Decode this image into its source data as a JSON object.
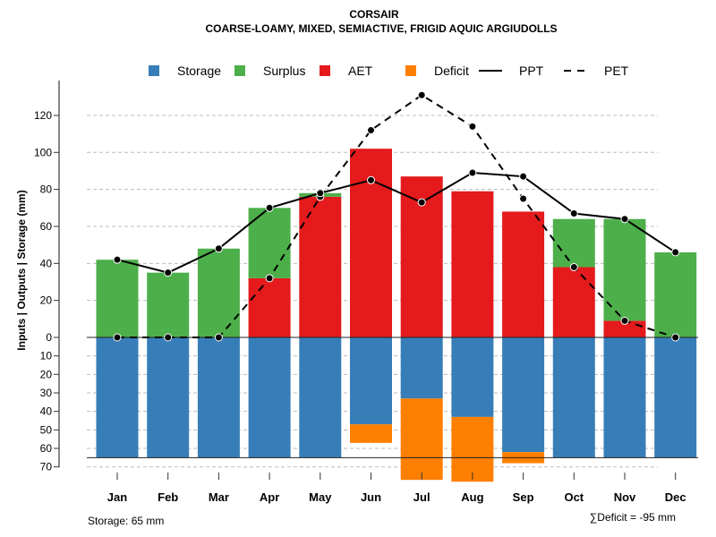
{
  "chart_data": {
    "type": "bar",
    "title": "CORSAIR",
    "subtitle": "COARSE-LOAMY, MIXED, SEMIACTIVE, FRIGID AQUIC ARGIUDOLLS",
    "ylabel": "Inputs | Outputs | Storage    (mm)",
    "categories": [
      "Jan",
      "Feb",
      "Mar",
      "Apr",
      "May",
      "Jun",
      "Jul",
      "Aug",
      "Sep",
      "Oct",
      "Nov",
      "Dec"
    ],
    "upper_ticks": [
      0,
      20,
      40,
      60,
      80,
      100,
      120
    ],
    "lower_ticks": [
      10,
      20,
      30,
      40,
      50,
      60,
      70
    ],
    "ylim": [
      -70,
      135
    ],
    "grid": true,
    "legend_placement": "top",
    "legend": [
      {
        "label": "Storage",
        "type": "box",
        "color": "#377EB8"
      },
      {
        "label": "Surplus",
        "type": "box",
        "color": "#4DAF4A"
      },
      {
        "label": "AET",
        "type": "box",
        "color": "#E41A1C"
      },
      {
        "label": "Deficit",
        "type": "box",
        "color": "#FF7F00"
      },
      {
        "label": "PPT",
        "type": "solid"
      },
      {
        "label": "PET",
        "type": "dashed"
      }
    ],
    "series": [
      {
        "name": "AET",
        "values": [
          0,
          0,
          0,
          32,
          76,
          102,
          87,
          79,
          68,
          38,
          9,
          0
        ]
      },
      {
        "name": "Surplus",
        "values": [
          42,
          35,
          48,
          38,
          2,
          0,
          0,
          0,
          0,
          26,
          55,
          46
        ]
      },
      {
        "name": "Storage",
        "values": [
          65,
          65,
          65,
          65,
          65,
          47,
          33,
          43,
          62,
          65,
          65,
          65
        ]
      },
      {
        "name": "Deficit",
        "values": [
          0,
          0,
          0,
          0,
          0,
          10,
          44,
          35,
          6,
          0,
          0,
          0
        ]
      },
      {
        "name": "PPT",
        "values": [
          42,
          35,
          48,
          70,
          78,
          85,
          73,
          89,
          87,
          67,
          64,
          46
        ]
      },
      {
        "name": "PET",
        "values": [
          0,
          0,
          0,
          32,
          76,
          112,
          131,
          114,
          75,
          38,
          9,
          0
        ]
      }
    ],
    "storage_capacity": 65,
    "annotations": {
      "storage_note": "Storage: 65 mm",
      "deficit_note": "∑Deficit = -95 mm"
    }
  }
}
